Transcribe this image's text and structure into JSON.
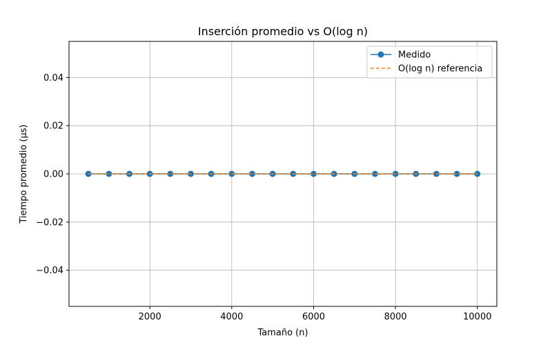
{
  "chart_data": {
    "type": "line",
    "title": "Inserción promedio vs O(log n)",
    "xlabel": "Tamaño (n)",
    "ylabel": "Tiempo promedio (µs)",
    "xlim": [
      25,
      10475
    ],
    "ylim": [
      -0.055,
      0.055
    ],
    "xticks": [
      2000,
      4000,
      6000,
      8000,
      10000
    ],
    "yticks": [
      -0.04,
      -0.02,
      0.0,
      0.02,
      0.04
    ],
    "xtick_labels": [
      "2000",
      "4000",
      "6000",
      "8000",
      "10000"
    ],
    "ytick_labels": [
      "−0.04",
      "−0.02",
      "0.00",
      "0.02",
      "0.04"
    ],
    "grid": true,
    "legend_position": "top-right",
    "x": [
      500,
      1000,
      1500,
      2000,
      2500,
      3000,
      3500,
      4000,
      4500,
      5000,
      5500,
      6000,
      6500,
      7000,
      7500,
      8000,
      8500,
      9000,
      9500,
      10000
    ],
    "series": [
      {
        "name": "Medido",
        "style": "solid-with-markers",
        "color": "#1f77b4",
        "values": [
          0,
          0,
          0,
          0,
          0,
          0,
          0,
          0,
          0,
          0,
          0,
          0,
          0,
          0,
          0,
          0,
          0,
          0,
          0,
          0
        ]
      },
      {
        "name": "O(log n) referencia",
        "style": "dashed",
        "color": "#ff7f0e",
        "values": [
          0,
          0,
          0,
          0,
          0,
          0,
          0,
          0,
          0,
          0,
          0,
          0,
          0,
          0,
          0,
          0,
          0,
          0,
          0,
          0
        ]
      }
    ]
  }
}
